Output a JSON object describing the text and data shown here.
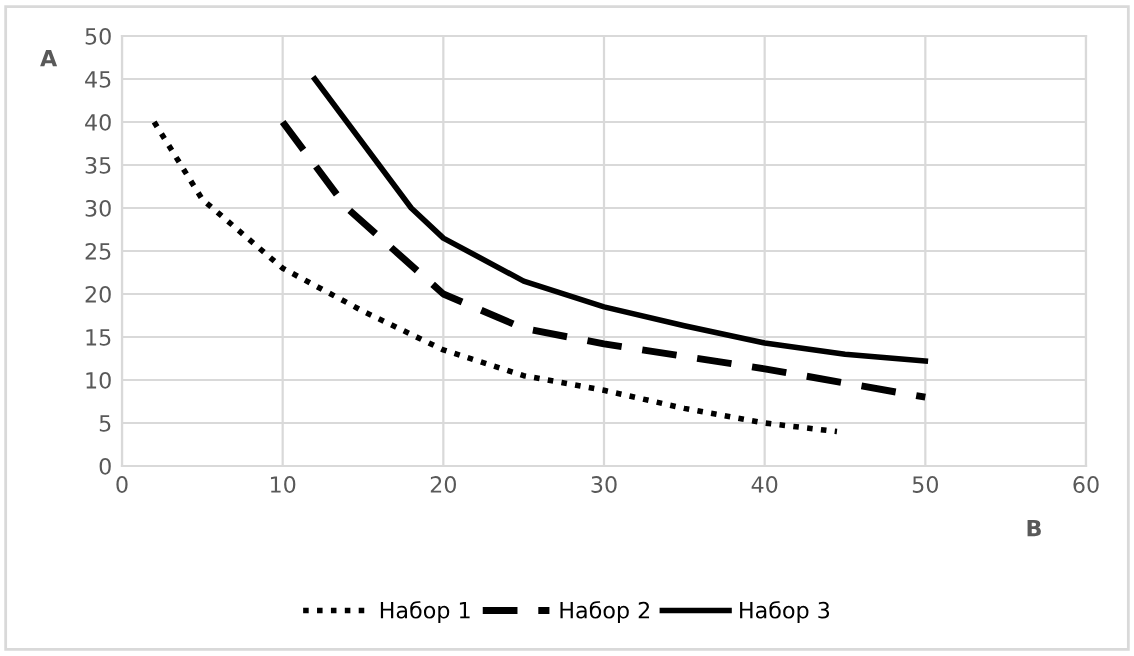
{
  "chart_data": {
    "type": "line",
    "xlabel": "B",
    "ylabel": "A",
    "xlim": [
      0,
      60
    ],
    "xticks": [
      0,
      10,
      20,
      30,
      40,
      50,
      60
    ],
    "ylim": [
      0,
      50
    ],
    "yticks": [
      0,
      5,
      10,
      15,
      20,
      25,
      30,
      35,
      40,
      45,
      50
    ],
    "grid": true,
    "legend": "bottom",
    "marker": "none",
    "series": [
      {
        "name": "Набор 1",
        "color": "#000000",
        "line_style": "dotted",
        "x": [
          2,
          5,
          10,
          15,
          20,
          25,
          30,
          35,
          40,
          44.5
        ],
        "values": [
          40,
          31,
          23,
          18,
          13.5,
          10.5,
          8.8,
          6.7,
          5,
          4
        ]
      },
      {
        "name": "Набор 2",
        "color": "#000000",
        "line_style": "dashed",
        "x": [
          10,
          12,
          14,
          17,
          20,
          25,
          30,
          40,
          50
        ],
        "values": [
          40,
          35,
          30,
          25,
          20,
          16,
          14.2,
          11.3,
          8
        ]
      },
      {
        "name": "Набор 3",
        "color": "#000000",
        "line_style": "solid",
        "x": [
          12,
          14,
          16,
          18,
          20,
          25,
          30,
          35,
          40,
          45,
          50
        ],
        "values": [
          45,
          40,
          35,
          30,
          26.5,
          21.5,
          18.5,
          16.3,
          14.3,
          13,
          12.2
        ]
      }
    ]
  }
}
